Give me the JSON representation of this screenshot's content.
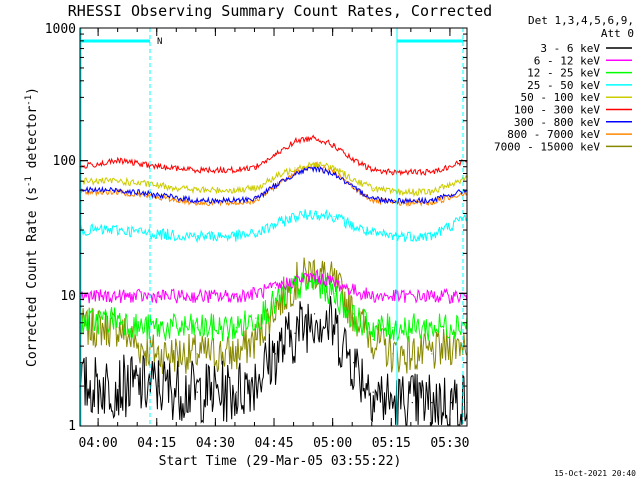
{
  "chart_data": {
    "type": "line",
    "title": "RHESSI Observing Summary Count Rates, Corrected",
    "xlabel": "Start Time (29-Mar-05 03:55:22)",
    "ylabel_main": "Corrected Count Rate (s",
    "ylabel_sup1": "-1",
    "ylabel_mid": " detector",
    "ylabel_sup2": "-1",
    "ylabel_end": ")",
    "yscale": "log",
    "ylim": [
      1,
      1000
    ],
    "xlim_minutes": [
      0,
      99
    ],
    "x_ticks": [
      "04:00",
      "04:15",
      "04:30",
      "04:45",
      "05:00",
      "05:15",
      "05:30"
    ],
    "y_ticks": [
      "1",
      "10",
      "100",
      "1000"
    ],
    "legend_position": "right",
    "legend_header": [
      "Det 1,3,4,5,6,9,",
      "Att 0"
    ],
    "footer_timestamp": "15-Oct-2021 20:40",
    "top_bar_label": "N",
    "series": [
      {
        "name": "3 - 6 keV",
        "color": "#000000",
        "x": [
          0,
          10,
          20,
          30,
          40,
          45,
          50,
          55,
          60,
          65,
          70,
          75,
          80,
          85,
          90,
          95,
          99
        ],
        "y": [
          2,
          2,
          2,
          1.8,
          1.8,
          2.3,
          3.5,
          5,
          7,
          5.5,
          3,
          1.8,
          1.5,
          1.5,
          1.5,
          1.5,
          1.5
        ]
      },
      {
        "name": "6 - 12 keV",
        "color": "#ff00ff",
        "x": [
          0,
          10,
          20,
          30,
          40,
          45,
          50,
          55,
          60,
          65,
          70,
          75,
          80,
          90,
          99
        ],
        "y": [
          9.5,
          9.5,
          9.5,
          9.5,
          9.5,
          10,
          11,
          12.5,
          13.5,
          12,
          10.5,
          9.5,
          9.5,
          9.5,
          9.5
        ]
      },
      {
        "name": "12 - 25 keV",
        "color": "#00ff00",
        "x": [
          0,
          10,
          15,
          20,
          30,
          40,
          45,
          50,
          55,
          60,
          65,
          70,
          75,
          80,
          90,
          99
        ],
        "y": [
          6,
          6.5,
          5.5,
          5.5,
          5.5,
          5.5,
          6.5,
          8.5,
          11,
          12,
          10,
          6.5,
          5.5,
          5.5,
          5.5,
          6
        ]
      },
      {
        "name": "25 - 50 keV",
        "color": "#00ffff",
        "x": [
          0,
          10,
          20,
          30,
          40,
          45,
          50,
          55,
          60,
          65,
          70,
          75,
          80,
          90,
          99
        ],
        "y": [
          30,
          30,
          28,
          27,
          27,
          28,
          33,
          38,
          40,
          38,
          32,
          28,
          27,
          27,
          38
        ]
      },
      {
        "name": "50 - 100 keV",
        "color": "#cccc00",
        "x": [
          0,
          10,
          20,
          30,
          40,
          45,
          50,
          55,
          60,
          65,
          70,
          75,
          80,
          90,
          99
        ],
        "y": [
          70,
          70,
          65,
          60,
          60,
          62,
          75,
          88,
          95,
          88,
          72,
          62,
          58,
          58,
          75
        ]
      },
      {
        "name": "100 - 300 keV",
        "color": "#ff0000",
        "x": [
          0,
          10,
          15,
          20,
          30,
          40,
          45,
          50,
          55,
          60,
          65,
          70,
          75,
          80,
          90,
          99
        ],
        "y": [
          90,
          100,
          95,
          90,
          85,
          85,
          90,
          110,
          140,
          150,
          130,
          100,
          85,
          82,
          82,
          100
        ]
      },
      {
        "name": "300 - 800 keV",
        "color": "#0000ff",
        "x": [
          0,
          10,
          20,
          30,
          40,
          45,
          50,
          55,
          60,
          65,
          70,
          75,
          80,
          90,
          99
        ],
        "y": [
          60,
          60,
          55,
          50,
          50,
          52,
          65,
          80,
          88,
          80,
          62,
          52,
          50,
          50,
          60
        ]
      },
      {
        "name": "800 - 7000 keV",
        "color": "#ff8800",
        "x": [
          0,
          10,
          20,
          30,
          40,
          45,
          50,
          55,
          60,
          65,
          70,
          75,
          80,
          90,
          99
        ],
        "y": [
          58,
          58,
          53,
          48,
          48,
          50,
          64,
          82,
          92,
          82,
          62,
          50,
          48,
          48,
          58
        ]
      },
      {
        "name": "7000 - 15000 keV",
        "color": "#888800",
        "x": [
          0,
          10,
          15,
          20,
          30,
          40,
          45,
          50,
          55,
          60,
          65,
          70,
          75,
          80,
          90,
          99
        ],
        "y": [
          5.5,
          5.5,
          4,
          3.5,
          3.5,
          3.5,
          4.5,
          8,
          12,
          15,
          12,
          7,
          4.5,
          3.5,
          3.5,
          4.5
        ]
      }
    ]
  }
}
